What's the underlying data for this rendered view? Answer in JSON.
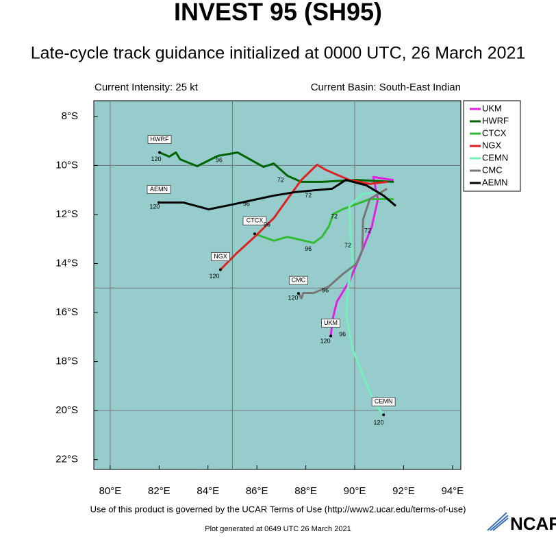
{
  "chart_data": {
    "type": "track",
    "title": "INVEST 95 (SH95)",
    "subtitle": "Late-cycle track guidance initialized at 0000 UTC, 26 March 2021",
    "intensity_text": "Current Intensity: 25 kt",
    "basin_text": "Current Basin: South-East Indian",
    "footer": "Use of this product is governed by the UCAR Terms of Use (http://www2.ucar.edu/terms-of-use)",
    "generated": "Plot generated at 0649 UTC   26 March 2021",
    "logo": "NCAR",
    "background": "#96cccc",
    "grid": true,
    "legend": "upper right outside",
    "xlim": [
      79.33,
      94.34
    ],
    "ylim": [
      -22.4,
      -7.36
    ],
    "xticks": [
      {
        "value": 80,
        "label": "80°E"
      },
      {
        "value": 82,
        "label": "82°E"
      },
      {
        "value": 84,
        "label": "84°E"
      },
      {
        "value": 86,
        "label": "86°E"
      },
      {
        "value": 88,
        "label": "88°E"
      },
      {
        "value": 90,
        "label": "90°E"
      },
      {
        "value": 92,
        "label": "92°E"
      },
      {
        "value": 94,
        "label": "94°E"
      }
    ],
    "yticks": [
      {
        "value": -8,
        "label": "8°S"
      },
      {
        "value": -10,
        "label": "10°S"
      },
      {
        "value": -12,
        "label": "12°S"
      },
      {
        "value": -14,
        "label": "14°S"
      },
      {
        "value": -16,
        "label": "16°S"
      },
      {
        "value": -18,
        "label": "18°S"
      },
      {
        "value": -20,
        "label": "20°S"
      },
      {
        "value": -22,
        "label": "22°S"
      }
    ],
    "xgrid": [
      80,
      85,
      90
    ],
    "ygrid": [
      -10,
      -15,
      -20
    ],
    "series": [
      {
        "name": "UKM",
        "color": "#e020e0",
        "x": [
          91.6,
          90.76,
          90.95,
          90.7,
          90.2,
          89.78,
          89.27,
          89.1,
          89.02
        ],
        "values": [
          -10.6,
          -10.47,
          -11.37,
          -12.49,
          -13.74,
          -14.72,
          -15.56,
          -16.26,
          -16.96
        ]
      },
      {
        "name": "HWRF",
        "color": "#006400",
        "x": [
          91.6,
          90.06,
          88.66,
          87.82,
          87.25,
          86.69,
          86.27,
          85.21,
          84.4,
          83.56,
          82.86,
          82.69,
          82.41,
          82.02
        ],
        "values": [
          -10.67,
          -10.59,
          -10.67,
          -10.67,
          -10.42,
          -9.92,
          -10.06,
          -9.47,
          -9.61,
          -10.03,
          -9.75,
          -9.47,
          -9.64,
          -9.47
        ]
      },
      {
        "name": "CTCX",
        "color": "#33bb33",
        "x": [
          91.6,
          90.62,
          89.5,
          89.13,
          88.94,
          88.66,
          88.32,
          87.25,
          86.69,
          86.08,
          85.91
        ],
        "values": [
          -11.37,
          -11.37,
          -11.79,
          -11.98,
          -12.49,
          -12.91,
          -13.16,
          -12.91,
          -13.07,
          -12.85,
          -12.79
        ]
      },
      {
        "name": "NGX",
        "color": "#dd2222",
        "x": [
          91.32,
          90.62,
          89.78,
          89.3,
          88.8,
          88.46,
          87.82,
          87.25,
          86.69,
          85.91,
          85.15,
          84.51
        ],
        "values": [
          -10.67,
          -10.75,
          -10.59,
          -10.39,
          -10.17,
          -9.97,
          -10.59,
          -11.37,
          -12.15,
          -12.91,
          -13.6,
          -14.25
        ]
      },
      {
        "name": "CEMN",
        "color": "#77eebb",
        "x": [
          91.04,
          90.34,
          89.78,
          89.83,
          89.92,
          89.72,
          89.66,
          89.92,
          90.39,
          90.84,
          91.18
        ],
        "values": [
          -11.09,
          -11.15,
          -11.65,
          -12.77,
          -13.88,
          -15.0,
          -16.12,
          -17.51,
          -18.69,
          -19.75,
          -20.17
        ]
      },
      {
        "name": "CMC",
        "color": "#777777",
        "x": [
          91.32,
          90.62,
          90.34,
          90.31,
          90.06,
          89.5,
          88.94,
          88.32,
          87.9,
          87.82,
          87.7
        ],
        "values": [
          -10.95,
          -11.37,
          -12.21,
          -13.46,
          -14.02,
          -14.44,
          -14.94,
          -15.2,
          -15.2,
          -15.42,
          -15.22
        ]
      },
      {
        "name": "AEMN",
        "color": "#000000",
        "x": [
          91.68,
          91.18,
          90.48,
          89.64,
          89.08,
          88.38,
          87.54,
          86.69,
          85.8,
          85.01,
          84.03,
          82.99,
          81.99
        ],
        "values": [
          -11.65,
          -11.23,
          -10.81,
          -10.59,
          -10.95,
          -11.01,
          -11.09,
          -11.23,
          -11.42,
          -11.59,
          -11.79,
          -11.51,
          -11.51
        ]
      }
    ],
    "annotations": [
      {
        "text": "120",
        "x": 81.88,
        "y": -9.75
      },
      {
        "text": "96",
        "x": 84.45,
        "y": -9.8
      },
      {
        "text": "72",
        "x": 86.97,
        "y": -10.61
      },
      {
        "text": "120",
        "x": 81.82,
        "y": -11.7
      },
      {
        "text": "96",
        "x": 85.57,
        "y": -11.59
      },
      {
        "text": "72",
        "x": 88.1,
        "y": -11.23
      },
      {
        "text": "96",
        "x": 88.1,
        "y": -13.41
      },
      {
        "text": "72",
        "x": 89.16,
        "y": -12.09
      },
      {
        "text": "120",
        "x": 84.26,
        "y": -14.53
      },
      {
        "text": "96",
        "x": 86.41,
        "y": -12.43
      },
      {
        "text": "120",
        "x": 87.48,
        "y": -15.42
      },
      {
        "text": "96",
        "x": 88.8,
        "y": -15.11
      },
      {
        "text": "120",
        "x": 88.8,
        "y": -17.18
      },
      {
        "text": "96",
        "x": 89.5,
        "y": -16.9
      },
      {
        "text": "72",
        "x": 90.53,
        "y": -12.68
      },
      {
        "text": "120",
        "x": 90.98,
        "y": -20.5
      },
      {
        "text": "72",
        "x": 89.72,
        "y": -13.27
      }
    ]
  }
}
